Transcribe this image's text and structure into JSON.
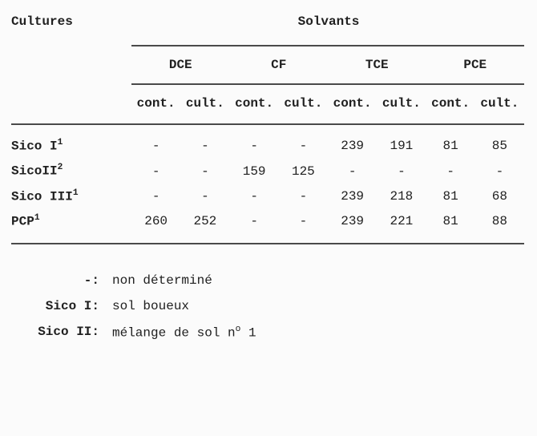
{
  "header": {
    "cultures_label": "Cultures",
    "solvants_label": "Solvants"
  },
  "groups": [
    "DCE",
    "CF",
    "TCE",
    "PCE"
  ],
  "subheaders": [
    "cont.",
    "cult.",
    "cont.",
    "cult.",
    "cont.",
    "cult.",
    "cont.",
    "cult."
  ],
  "rows": [
    {
      "label_base": "Sico I",
      "label_sup": "1",
      "values": [
        "-",
        "-",
        "-",
        "-",
        "239",
        "191",
        "81",
        "85"
      ]
    },
    {
      "label_base": "SicoII",
      "label_sup": "2",
      "values": [
        "-",
        "-",
        "159",
        "125",
        "-",
        "-",
        "-",
        "-"
      ]
    },
    {
      "label_base": "Sico III",
      "label_sup": "1",
      "values": [
        "-",
        "-",
        "-",
        "-",
        "239",
        "218",
        "81",
        "68"
      ]
    },
    {
      "label_base": "PCP",
      "label_sup": "1",
      "values": [
        "260",
        "252",
        "-",
        "-",
        "239",
        "221",
        "81",
        "88"
      ]
    }
  ],
  "legend": [
    {
      "key": "-:",
      "text": "non déterminé"
    },
    {
      "key": "Sico I:",
      "text": "sol boueux"
    },
    {
      "key": "Sico II:",
      "text_prefix": "mélange de sol n",
      "text_sup": "o",
      "text_suffix": " 1"
    }
  ]
}
